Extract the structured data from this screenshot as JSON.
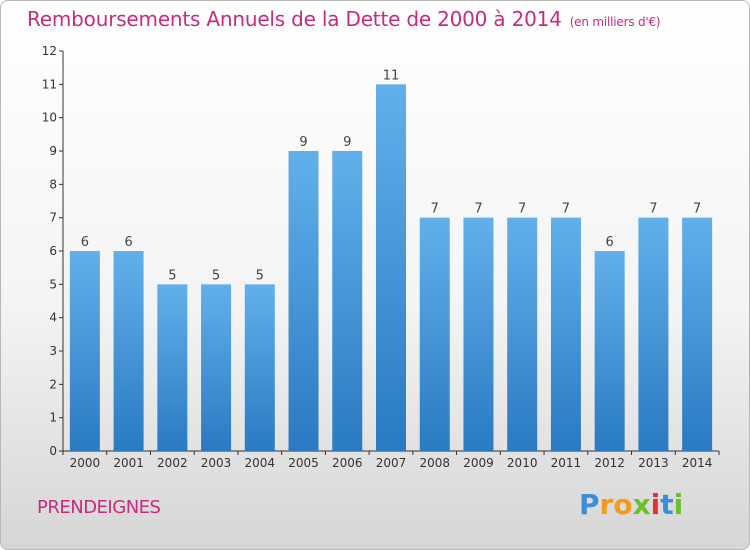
{
  "title": "Remboursements Annuels de la Dette de 2000 à 2014",
  "unit": "(en milliers d'€)",
  "commune": "PRENDEIGNES",
  "logo": {
    "letters": [
      "P",
      "r",
      "o",
      "x",
      "i",
      "t",
      "i"
    ],
    "colors": [
      "#3a8fd8",
      "#f29b1a",
      "#f29b1a",
      "#6cc02b",
      "#e8312f",
      "#3a8fd8",
      "#6cc02b"
    ]
  },
  "colors": {
    "title": "#c72b7e",
    "bar_top": "#62b0ea",
    "bar_bottom": "#2a7ac2",
    "axis": "#333333"
  },
  "chart_data": {
    "type": "bar",
    "categories": [
      "2000",
      "2001",
      "2002",
      "2003",
      "2004",
      "2005",
      "2006",
      "2007",
      "2008",
      "2009",
      "2010",
      "2011",
      "2012",
      "2013",
      "2014"
    ],
    "values": [
      6,
      6,
      5,
      5,
      5,
      9,
      9,
      11,
      7,
      7,
      7,
      7,
      6,
      7,
      7
    ],
    "data_labels": [
      "6",
      "6",
      "5",
      "5",
      "5",
      "9",
      "9",
      "11",
      "7",
      "7",
      "7",
      "7",
      "6",
      "7",
      "7"
    ],
    "yticks": [
      "0",
      "1",
      "2",
      "3",
      "4",
      "5",
      "6",
      "7",
      "8",
      "9",
      "10",
      "11",
      "12"
    ],
    "ylim": [
      0,
      12
    ],
    "grid": false,
    "legend": "none"
  }
}
